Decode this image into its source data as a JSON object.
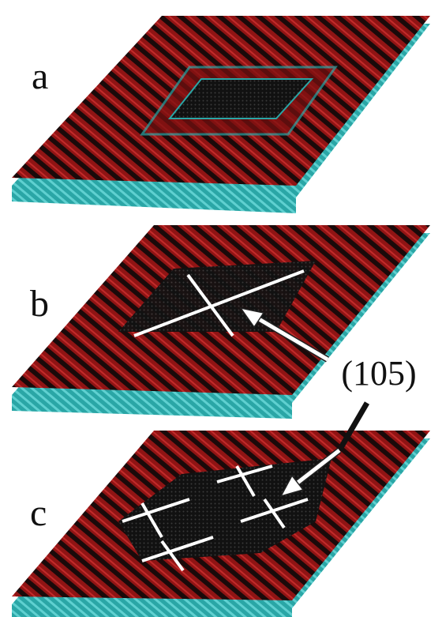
{
  "panels": [
    {
      "label": "a"
    },
    {
      "label": "b"
    },
    {
      "label": "c"
    }
  ],
  "annotation": "(105)"
}
